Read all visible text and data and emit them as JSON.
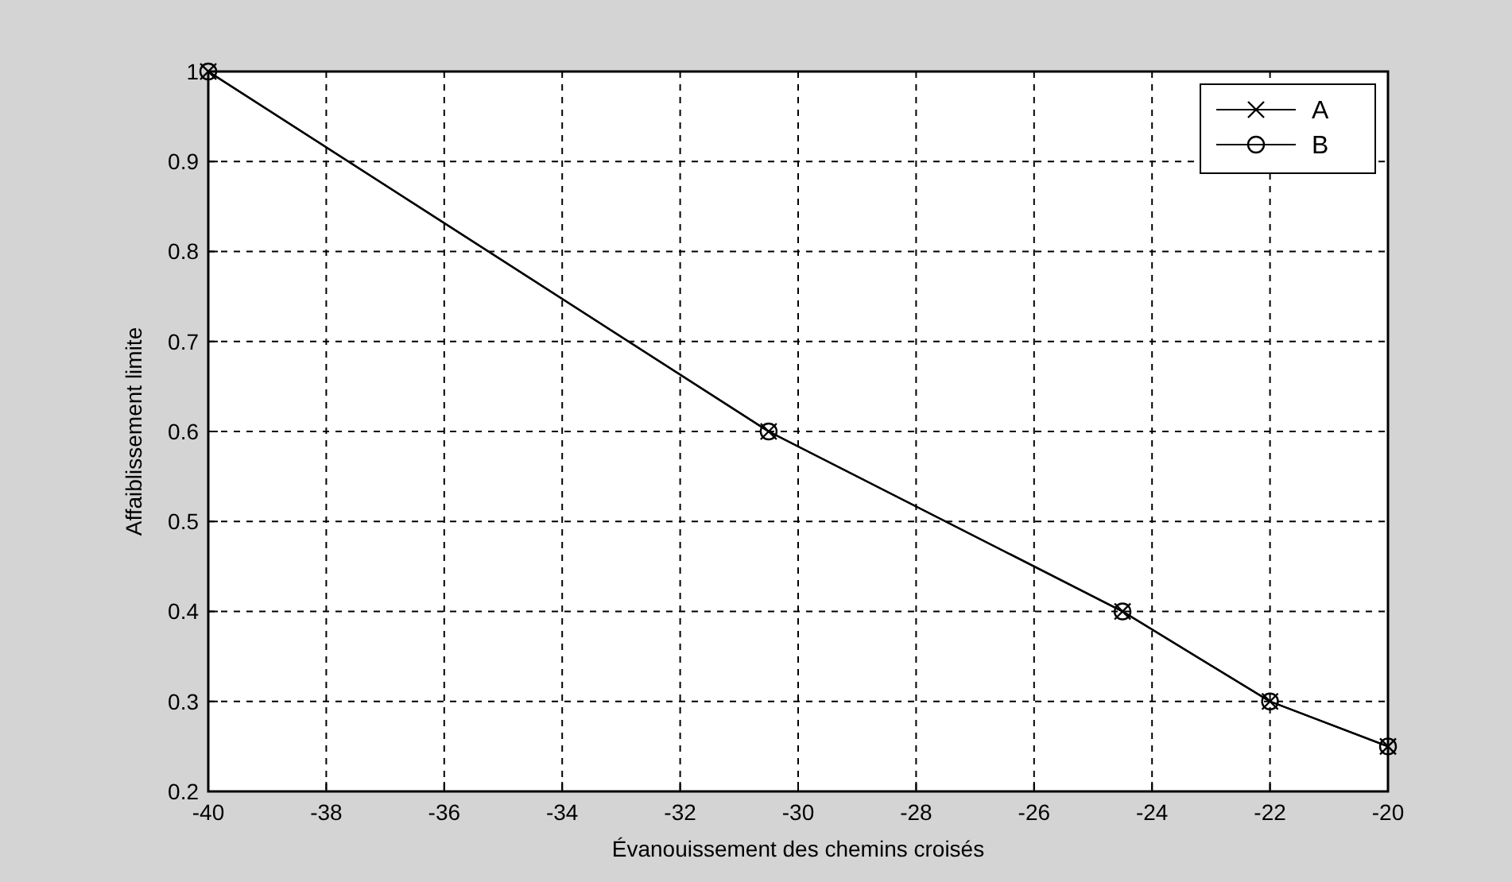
{
  "chart_data": {
    "type": "line",
    "xlabel": "Évanouissement des chemins croisés",
    "ylabel": "Affaiblissement limite",
    "x": [
      -40,
      -30.5,
      -24.5,
      -22,
      -20
    ],
    "series": [
      {
        "name": "A",
        "color": "#000000",
        "marker": "cross",
        "values": [
          1,
          0.6,
          0.4,
          0.3,
          0.25
        ]
      },
      {
        "name": "B",
        "color": "#000000",
        "marker": "circle",
        "values": [
          1,
          0.6,
          0.4,
          0.3,
          0.25
        ]
      }
    ],
    "xlim": [
      -40,
      -20
    ],
    "xticks": [
      -40,
      -38,
      -36,
      -34,
      -32,
      -30,
      -28,
      -26,
      -24,
      -22,
      -20
    ],
    "ylim": [
      0.2,
      1
    ],
    "yticks": [
      0.2,
      0.3,
      0.4,
      0.5,
      0.6,
      0.7,
      0.8,
      0.9,
      1
    ],
    "grid": true,
    "legend": "top right",
    "line_style": "solid"
  }
}
